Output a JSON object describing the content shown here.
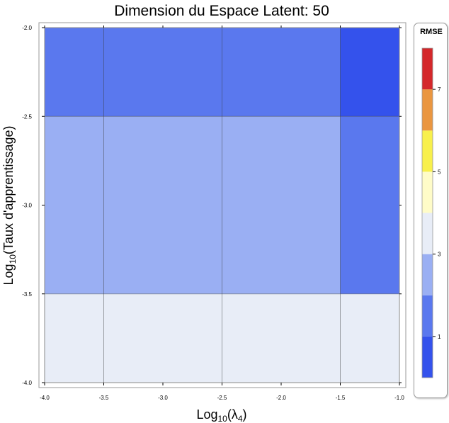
{
  "chart_data": {
    "type": "heatmap",
    "title": "Dimension du Espace Latent: 50",
    "xlabel_base": "Log",
    "xlabel_sub": "10",
    "xlabel_arg": "(λ",
    "xlabel_arg_sub": "4",
    "xlabel_close": ")",
    "ylabel_base": "Log",
    "ylabel_sub": "10",
    "ylabel_arg": "(Taux d'apprentissage)",
    "x_edges": [
      -4.0,
      -3.5,
      -2.5,
      -1.5,
      -1.0
    ],
    "y_edges": [
      -4.0,
      -3.5,
      -2.5,
      -2.0
    ],
    "xlim": [
      -4.0,
      -1.0
    ],
    "ylim": [
      -4.0,
      -2.0
    ],
    "x_ticks": [
      "-4.0",
      "-3.5",
      "-3.0",
      "-2.5",
      "-2.0",
      "-1.5",
      "-1.0"
    ],
    "x_tick_values": [
      -4.0,
      -3.5,
      -3.0,
      -2.5,
      -2.0,
      -1.5,
      -1.0
    ],
    "y_ticks": [
      "-2.0",
      "-2.5",
      "-3.0",
      "-3.5",
      "-4.0"
    ],
    "y_tick_values": [
      -2.0,
      -2.5,
      -3.0,
      -3.5,
      -4.0
    ],
    "cell_values": [
      [
        3.3,
        3.3,
        3.3,
        3.3
      ],
      [
        2.0,
        2.0,
        2.0,
        1.7
      ],
      [
        1.3,
        1.3,
        1.3,
        0.8
      ]
    ],
    "colorbar": {
      "title": "RMSE",
      "min": 0,
      "max": 8,
      "bands": [
        {
          "from": 0,
          "to": 1,
          "color": "#3452ec"
        },
        {
          "from": 1,
          "to": 2,
          "color": "#5a78ee"
        },
        {
          "from": 2,
          "to": 3,
          "color": "#9aaff3"
        },
        {
          "from": 3,
          "to": 4,
          "color": "#e8edf7"
        },
        {
          "from": 4,
          "to": 5,
          "color": "#fffcc8"
        },
        {
          "from": 5,
          "to": 6,
          "color": "#f8f04c"
        },
        {
          "from": 6,
          "to": 7,
          "color": "#ea9640"
        },
        {
          "from": 7,
          "to": 8,
          "color": "#d4272a"
        }
      ],
      "tick_labels": [
        "1",
        "3",
        "5",
        "7"
      ],
      "tick_values": [
        1,
        3,
        5,
        7
      ]
    }
  }
}
